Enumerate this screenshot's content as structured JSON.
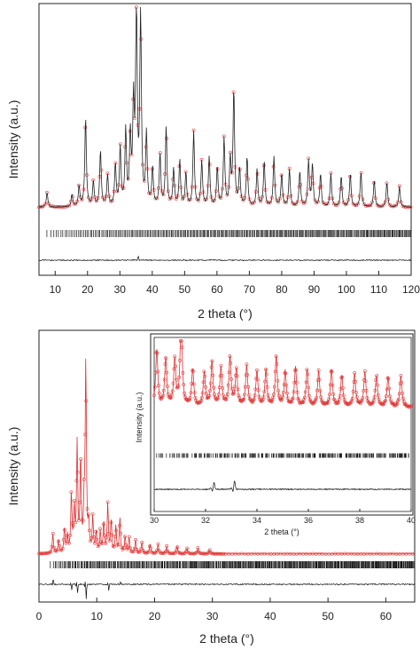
{
  "chart_data": [
    {
      "type": "line",
      "description_of_series": "observed (red circles), calculated (black line), Bragg positions (ticks), difference curve",
      "xlabel": "2 theta (°)",
      "ylabel": "Intensity (a.u.)",
      "xlim": [
        5,
        120
      ],
      "xticks": [
        10,
        20,
        30,
        40,
        50,
        60,
        70,
        80,
        90,
        100,
        110,
        120
      ],
      "y_ticks_shown": false,
      "grid": false,
      "legend": "none",
      "baseline": 0.04,
      "peaks": [
        {
          "x": 7.5,
          "h": 0.07
        },
        {
          "x": 15.2,
          "h": 0.06
        },
        {
          "x": 17.4,
          "h": 0.1
        },
        {
          "x": 19.4,
          "h": 0.43
        },
        {
          "x": 21.8,
          "h": 0.12
        },
        {
          "x": 24.0,
          "h": 0.27
        },
        {
          "x": 26.2,
          "h": 0.15
        },
        {
          "x": 28.6,
          "h": 0.2
        },
        {
          "x": 30.1,
          "h": 0.28
        },
        {
          "x": 31.8,
          "h": 0.36
        },
        {
          "x": 33.2,
          "h": 0.33
        },
        {
          "x": 34.2,
          "h": 0.47
        },
        {
          "x": 35.1,
          "h": 0.98
        },
        {
          "x": 36.4,
          "h": 0.94
        },
        {
          "x": 38.2,
          "h": 0.34
        },
        {
          "x": 40.1,
          "h": 0.18
        },
        {
          "x": 42.4,
          "h": 0.25
        },
        {
          "x": 44.3,
          "h": 0.38
        },
        {
          "x": 46.6,
          "h": 0.18
        },
        {
          "x": 48.5,
          "h": 0.22
        },
        {
          "x": 50.4,
          "h": 0.16
        },
        {
          "x": 52.8,
          "h": 0.36
        },
        {
          "x": 55.3,
          "h": 0.22
        },
        {
          "x": 57.6,
          "h": 0.24
        },
        {
          "x": 60.1,
          "h": 0.19
        },
        {
          "x": 62.2,
          "h": 0.33
        },
        {
          "x": 64.1,
          "h": 0.22
        },
        {
          "x": 65.2,
          "h": 0.56
        },
        {
          "x": 67.0,
          "h": 0.18
        },
        {
          "x": 69.3,
          "h": 0.24
        },
        {
          "x": 72.4,
          "h": 0.18
        },
        {
          "x": 74.6,
          "h": 0.22
        },
        {
          "x": 77.6,
          "h": 0.24
        },
        {
          "x": 80.0,
          "h": 0.16
        },
        {
          "x": 82.4,
          "h": 0.18
        },
        {
          "x": 85.6,
          "h": 0.17
        },
        {
          "x": 88.3,
          "h": 0.22
        },
        {
          "x": 89.5,
          "h": 0.2
        },
        {
          "x": 92.0,
          "h": 0.16
        },
        {
          "x": 95.2,
          "h": 0.16
        },
        {
          "x": 98.4,
          "h": 0.15
        },
        {
          "x": 101.2,
          "h": 0.16
        },
        {
          "x": 104.5,
          "h": 0.17
        },
        {
          "x": 108.6,
          "h": 0.13
        },
        {
          "x": 112.5,
          "h": 0.12
        },
        {
          "x": 116.4,
          "h": 0.1
        }
      ],
      "bragg_tick_range": [
        7.5,
        120
      ],
      "difference_feature": {
        "x": 35.5,
        "amplitude": 0.04
      }
    },
    {
      "type": "line",
      "description_of_series": "observed (red/black circles), calculated (red line), Bragg positions (ticks), difference curve",
      "xlabel": "2 theta (°)",
      "ylabel": "Intensity (a.u.)",
      "xlim": [
        0,
        65
      ],
      "xticks": [
        0,
        10,
        20,
        30,
        40,
        50,
        60
      ],
      "y_ticks_shown": false,
      "grid": false,
      "legend": "none",
      "baseline": 0.01,
      "peaks": [
        {
          "x": 2.4,
          "h": 0.1
        },
        {
          "x": 3.4,
          "h": 0.07
        },
        {
          "x": 4.4,
          "h": 0.13
        },
        {
          "x": 4.9,
          "h": 0.09
        },
        {
          "x": 5.6,
          "h": 0.3
        },
        {
          "x": 6.1,
          "h": 0.22
        },
        {
          "x": 6.6,
          "h": 0.55
        },
        {
          "x": 7.2,
          "h": 0.48
        },
        {
          "x": 7.8,
          "h": 0.21
        },
        {
          "x": 8.1,
          "h": 0.99
        },
        {
          "x": 8.6,
          "h": 0.14
        },
        {
          "x": 9.3,
          "h": 0.18
        },
        {
          "x": 9.9,
          "h": 0.11
        },
        {
          "x": 10.6,
          "h": 0.11
        },
        {
          "x": 11.2,
          "h": 0.16
        },
        {
          "x": 11.9,
          "h": 0.25
        },
        {
          "x": 12.5,
          "h": 0.17
        },
        {
          "x": 13.3,
          "h": 0.14
        },
        {
          "x": 14.0,
          "h": 0.18
        },
        {
          "x": 14.9,
          "h": 0.09
        },
        {
          "x": 15.6,
          "h": 0.08
        },
        {
          "x": 16.7,
          "h": 0.07
        },
        {
          "x": 17.8,
          "h": 0.06
        },
        {
          "x": 19.2,
          "h": 0.05
        },
        {
          "x": 20.6,
          "h": 0.05
        },
        {
          "x": 22.1,
          "h": 0.04
        },
        {
          "x": 23.9,
          "h": 0.04
        },
        {
          "x": 25.6,
          "h": 0.03
        },
        {
          "x": 27.5,
          "h": 0.03
        },
        {
          "x": 29.5,
          "h": 0.02
        }
      ],
      "bragg_tick_range": [
        2,
        65
      ],
      "difference_features": [
        {
          "x": 2.4,
          "amplitude": 0.05
        },
        {
          "x": 5.6,
          "amplitude": -0.05
        },
        {
          "x": 6.6,
          "amplitude": -0.09
        },
        {
          "x": 8.1,
          "amplitude": -0.14
        },
        {
          "x": 12.0,
          "amplitude": -0.06
        },
        {
          "x": 14.0,
          "amplitude": 0.03
        }
      ],
      "inset": {
        "type": "line",
        "xlabel": "2 theta (°)",
        "ylabel": "Intensity (a.u.)",
        "xlim": [
          30,
          40
        ],
        "xticks": [
          30,
          32,
          34,
          36,
          38,
          40
        ],
        "y_ticks_shown": false,
        "grid": false,
        "legend": "none",
        "baseline": 0.28,
        "peaks": [
          {
            "x": 30.1,
            "h": 0.62
          },
          {
            "x": 30.45,
            "h": 0.52
          },
          {
            "x": 30.8,
            "h": 0.5
          },
          {
            "x": 31.05,
            "h": 0.94
          },
          {
            "x": 31.5,
            "h": 0.4
          },
          {
            "x": 31.95,
            "h": 0.36
          },
          {
            "x": 32.25,
            "h": 0.48
          },
          {
            "x": 32.6,
            "h": 0.42
          },
          {
            "x": 32.95,
            "h": 0.53
          },
          {
            "x": 33.2,
            "h": 0.4
          },
          {
            "x": 33.6,
            "h": 0.44
          },
          {
            "x": 34.0,
            "h": 0.38
          },
          {
            "x": 34.35,
            "h": 0.4
          },
          {
            "x": 34.75,
            "h": 0.54
          },
          {
            "x": 35.1,
            "h": 0.38
          },
          {
            "x": 35.5,
            "h": 0.42
          },
          {
            "x": 35.95,
            "h": 0.4
          },
          {
            "x": 36.4,
            "h": 0.38
          },
          {
            "x": 36.9,
            "h": 0.4
          },
          {
            "x": 37.3,
            "h": 0.33
          },
          {
            "x": 37.8,
            "h": 0.36
          },
          {
            "x": 38.2,
            "h": 0.37
          },
          {
            "x": 38.65,
            "h": 0.34
          },
          {
            "x": 39.1,
            "h": 0.33
          },
          {
            "x": 39.6,
            "h": 0.34
          }
        ],
        "difference_features": [
          {
            "x": 32.3,
            "amplitude": 0.08
          },
          {
            "x": 33.1,
            "amplitude": 0.1
          }
        ]
      }
    }
  ],
  "colors": {
    "observed_marker": "#e64545",
    "calculated_line_top": "#222222",
    "calculated_line_bottom": "#e03030",
    "bragg_ticks": "#111111",
    "difference_line": "#111111",
    "axis": "#222222"
  }
}
